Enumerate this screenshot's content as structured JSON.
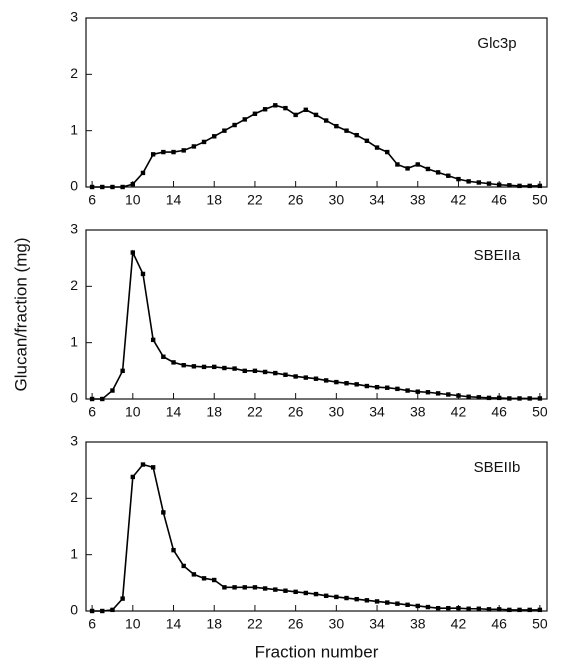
{
  "chart_data": [
    {
      "type": "line",
      "title": "Glc3p",
      "color": "#000000",
      "x": [
        6,
        7,
        8,
        9,
        10,
        11,
        12,
        13,
        14,
        15,
        16,
        17,
        18,
        19,
        20,
        21,
        22,
        23,
        24,
        25,
        26,
        27,
        28,
        29,
        30,
        31,
        32,
        33,
        34,
        35,
        36,
        37,
        38,
        39,
        40,
        41,
        42,
        43,
        44,
        45,
        46,
        47,
        48,
        49,
        50
      ],
      "values": [
        0,
        0,
        0,
        0,
        0.05,
        0.25,
        0.58,
        0.62,
        0.62,
        0.65,
        0.72,
        0.8,
        0.9,
        1.0,
        1.1,
        1.2,
        1.3,
        1.38,
        1.45,
        1.4,
        1.28,
        1.37,
        1.28,
        1.18,
        1.08,
        1.0,
        0.92,
        0.82,
        0.7,
        0.62,
        0.4,
        0.33,
        0.4,
        0.32,
        0.26,
        0.2,
        0.14,
        0.1,
        0.08,
        0.06,
        0.04,
        0.03,
        0.02,
        0.02,
        0.02
      ],
      "xlim": [
        5.4,
        50.7
      ],
      "ylim": [
        0,
        3
      ],
      "xticks": [
        6,
        10,
        14,
        18,
        22,
        26,
        30,
        34,
        38,
        42,
        46,
        50
      ],
      "yticks": [
        0,
        1,
        2,
        3
      ]
    },
    {
      "type": "line",
      "title": "SBEIIa",
      "color": "#000000",
      "ylabel": "Glucan/fraction (mg)",
      "x": [
        6,
        7,
        8,
        9,
        10,
        11,
        12,
        13,
        14,
        15,
        16,
        17,
        18,
        19,
        20,
        21,
        22,
        23,
        24,
        25,
        26,
        27,
        28,
        29,
        30,
        31,
        32,
        33,
        34,
        35,
        36,
        37,
        38,
        39,
        40,
        41,
        42,
        43,
        44,
        45,
        46,
        47,
        48,
        49,
        50
      ],
      "values": [
        0,
        0,
        0.15,
        0.5,
        2.6,
        2.22,
        1.05,
        0.75,
        0.65,
        0.6,
        0.58,
        0.57,
        0.57,
        0.55,
        0.54,
        0.5,
        0.5,
        0.48,
        0.46,
        0.43,
        0.4,
        0.38,
        0.36,
        0.33,
        0.3,
        0.28,
        0.26,
        0.23,
        0.21,
        0.2,
        0.18,
        0.15,
        0.13,
        0.12,
        0.1,
        0.08,
        0.06,
        0.04,
        0.03,
        0.02,
        0.02,
        0.01,
        0.01,
        0.01,
        0.01
      ],
      "xlim": [
        5.4,
        50.7
      ],
      "ylim": [
        0,
        3
      ],
      "xticks": [
        6,
        10,
        14,
        18,
        22,
        26,
        30,
        34,
        38,
        42,
        46,
        50
      ],
      "yticks": [
        0,
        1,
        2,
        3
      ]
    },
    {
      "type": "line",
      "title": "SBEIIb",
      "color": "#000000",
      "xlabel": "Fraction number",
      "x": [
        6,
        7,
        8,
        9,
        10,
        11,
        12,
        13,
        14,
        15,
        16,
        17,
        18,
        19,
        20,
        21,
        22,
        23,
        24,
        25,
        26,
        27,
        28,
        29,
        30,
        31,
        32,
        33,
        34,
        35,
        36,
        37,
        38,
        39,
        40,
        41,
        42,
        43,
        44,
        45,
        46,
        47,
        48,
        49,
        50
      ],
      "values": [
        0,
        0,
        0.02,
        0.22,
        2.38,
        2.6,
        2.55,
        1.75,
        1.08,
        0.8,
        0.65,
        0.58,
        0.55,
        0.42,
        0.42,
        0.42,
        0.42,
        0.4,
        0.38,
        0.36,
        0.34,
        0.32,
        0.3,
        0.27,
        0.25,
        0.23,
        0.21,
        0.19,
        0.17,
        0.15,
        0.13,
        0.11,
        0.09,
        0.07,
        0.05,
        0.05,
        0.05,
        0.04,
        0.04,
        0.03,
        0.03,
        0.02,
        0.02,
        0.02,
        0.02
      ],
      "xlim": [
        5.4,
        50.7
      ],
      "ylim": [
        0,
        3
      ],
      "xticks": [
        6,
        10,
        14,
        18,
        22,
        26,
        30,
        34,
        38,
        42,
        46,
        50
      ],
      "yticks": [
        0,
        1,
        2,
        3
      ]
    }
  ]
}
